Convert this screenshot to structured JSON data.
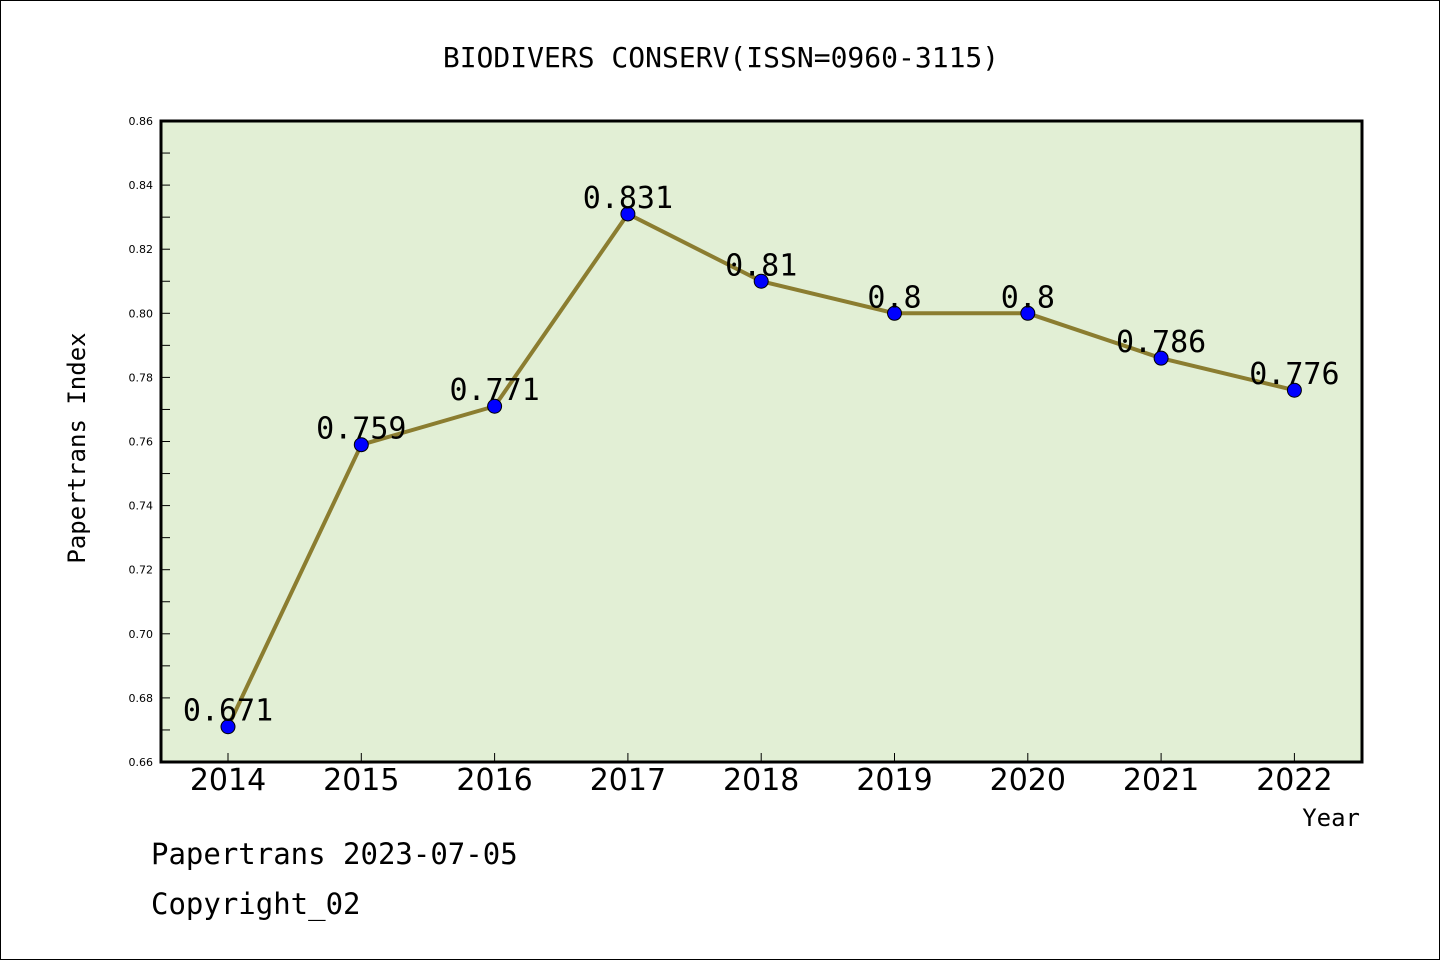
{
  "chart_data": {
    "type": "line",
    "title": "BIODIVERS CONSERV(ISSN=0960-3115)",
    "xlabel": "Year",
    "ylabel": "Papertrans Index",
    "categories": [
      "2014",
      "2015",
      "2016",
      "2017",
      "2018",
      "2019",
      "2020",
      "2021",
      "2022"
    ],
    "values": [
      0.671,
      0.759,
      0.771,
      0.831,
      0.81,
      0.8,
      0.8,
      0.786,
      0.776
    ],
    "data_labels": [
      "0.671",
      "0.759",
      "0.771",
      "0.831",
      "0.81",
      "0.8",
      "0.8",
      "0.786",
      "0.776"
    ],
    "ylim": [
      0.66,
      0.86
    ],
    "yticks": [
      "0.66",
      "0.68",
      "0.70",
      "0.72",
      "0.74",
      "0.76",
      "0.78",
      "0.80",
      "0.82",
      "0.84",
      "0.86"
    ],
    "grid": false,
    "colors": {
      "plot_background": "#e2efd5",
      "line": "#8b7d30",
      "marker": "#0000ff"
    }
  },
  "footer": {
    "date_line": "Papertrans 2023-07-05",
    "copyright": "Copyright_02"
  }
}
